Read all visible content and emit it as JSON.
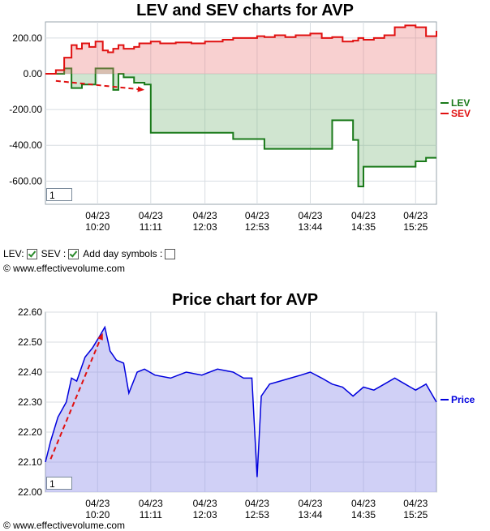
{
  "lev_panel": {
    "zoom_value": "1",
    "controls": {
      "lev_label": "LEV:",
      "sev_label": "SEV :",
      "day_symbols_label": "Add day symbols :",
      "lev_checked": true,
      "sev_checked": true,
      "day_symbols_checked": false
    },
    "copyright": "© www.effectivevolume.com"
  },
  "price_panel": {
    "zoom_value": "1",
    "copyright": "© www.effectivevolume.com"
  },
  "chart_data": [
    {
      "type": "line",
      "title": "LEV and SEV charts for AVP",
      "x_ticks": [
        "04/23\n10:20",
        "04/23\n11:11",
        "04/23\n12:03",
        "04/23\n12:53",
        "04/23\n13:44",
        "04/23\n14:35",
        "04/23\n15:25"
      ],
      "y_ticks": [
        "200.00",
        "0.00",
        "-200.00",
        "-400.00",
        "-600.00"
      ],
      "ylim": [
        -730,
        290
      ],
      "x": [
        "09:30",
        "09:40",
        "09:48",
        "09:55",
        "10:00",
        "10:05",
        "10:12",
        "10:18",
        "10:25",
        "10:30",
        "10:35",
        "10:40",
        "10:45",
        "10:50",
        "10:55",
        "11:00",
        "11:05",
        "11:11",
        "11:20",
        "11:35",
        "11:50",
        "12:03",
        "12:20",
        "12:30",
        "12:40",
        "12:53",
        "13:00",
        "13:10",
        "13:20",
        "13:30",
        "13:44",
        "13:55",
        "14:05",
        "14:15",
        "14:25",
        "14:30",
        "14:35",
        "14:45",
        "14:55",
        "15:05",
        "15:15",
        "15:25",
        "15:35",
        "15:45"
      ],
      "series": [
        {
          "name": "LEV",
          "color": "#1a7a1a",
          "values": [
            0,
            0,
            30,
            -80,
            -80,
            -60,
            -60,
            30,
            30,
            30,
            -90,
            0,
            -20,
            -20,
            -50,
            -50,
            -60,
            -330,
            -330,
            -330,
            -330,
            -330,
            -330,
            -365,
            -365,
            -365,
            -420,
            -420,
            -420,
            -420,
            -420,
            -420,
            -260,
            -260,
            -370,
            -630,
            -520,
            -520,
            -520,
            -520,
            -520,
            -490,
            -470,
            -470
          ]
        },
        {
          "name": "SEV",
          "color": "#e01010",
          "values": [
            0,
            20,
            90,
            160,
            140,
            170,
            150,
            180,
            130,
            120,
            140,
            160,
            140,
            140,
            150,
            170,
            170,
            180,
            170,
            175,
            170,
            180,
            190,
            200,
            200,
            210,
            205,
            215,
            205,
            215,
            225,
            200,
            205,
            180,
            185,
            200,
            190,
            200,
            215,
            260,
            270,
            260,
            210,
            240
          ]
        }
      ],
      "legend": "right"
    },
    {
      "type": "area",
      "title": "Price chart for AVP",
      "x_ticks": [
        "04/23\n10:20",
        "04/23\n11:11",
        "04/23\n12:03",
        "04/23\n12:53",
        "04/23\n13:44",
        "04/23\n14:35",
        "04/23\n15:25"
      ],
      "y_ticks": [
        "22.60",
        "22.50",
        "22.40",
        "22.30",
        "22.20",
        "22.10",
        "22.00"
      ],
      "ylim": [
        22.0,
        22.6
      ],
      "x": [
        "09:30",
        "09:35",
        "09:42",
        "09:50",
        "09:55",
        "10:00",
        "10:08",
        "10:15",
        "10:22",
        "10:27",
        "10:32",
        "10:38",
        "10:45",
        "10:50",
        "10:58",
        "11:05",
        "11:15",
        "11:30",
        "11:45",
        "12:00",
        "12:15",
        "12:30",
        "12:40",
        "12:48",
        "12:53",
        "12:57",
        "13:05",
        "13:15",
        "13:25",
        "13:35",
        "13:44",
        "13:55",
        "14:05",
        "14:15",
        "14:25",
        "14:35",
        "14:45",
        "14:55",
        "15:05",
        "15:15",
        "15:25",
        "15:35",
        "15:45"
      ],
      "series": [
        {
          "name": "Price",
          "color": "#0000dd",
          "values": [
            22.1,
            22.17,
            22.25,
            22.3,
            22.38,
            22.37,
            22.45,
            22.48,
            22.52,
            22.55,
            22.47,
            22.44,
            22.43,
            22.33,
            22.4,
            22.41,
            22.39,
            22.38,
            22.4,
            22.39,
            22.41,
            22.4,
            22.38,
            22.38,
            22.05,
            22.32,
            22.36,
            22.37,
            22.38,
            22.39,
            22.4,
            22.38,
            22.36,
            22.35,
            22.32,
            22.35,
            22.34,
            22.36,
            22.38,
            22.36,
            22.34,
            22.36,
            22.3
          ]
        }
      ],
      "legend": "right"
    }
  ]
}
